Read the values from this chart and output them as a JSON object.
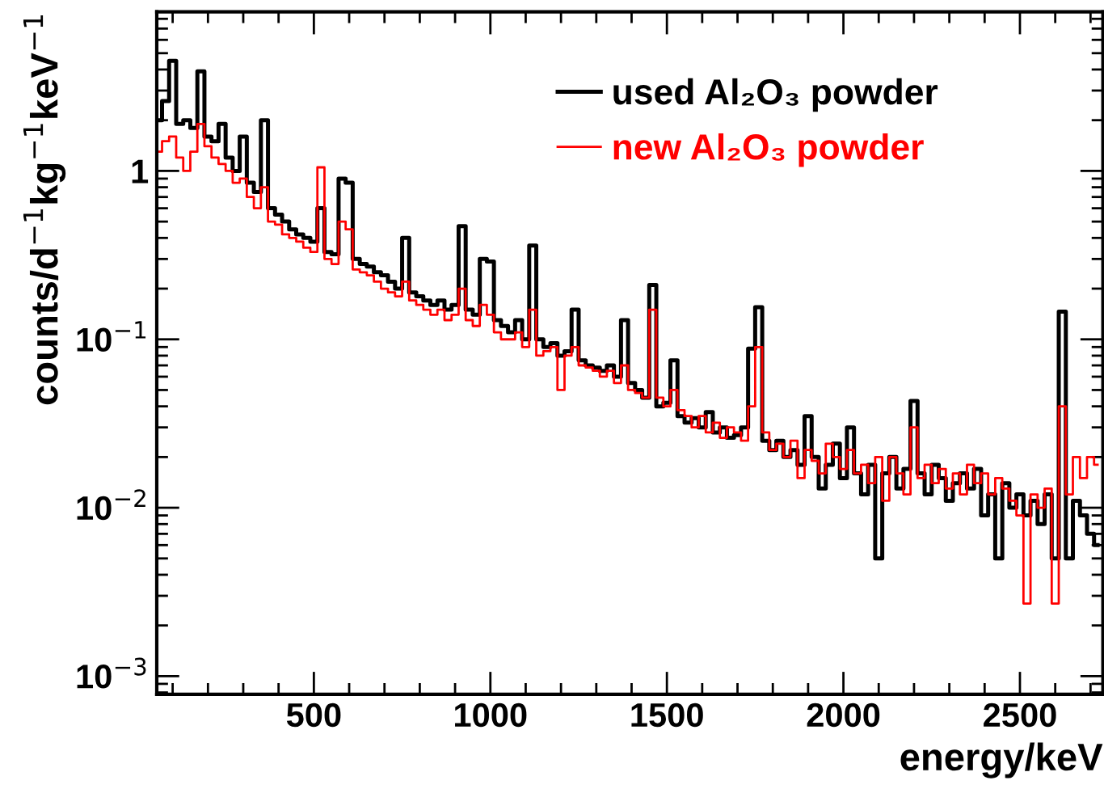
{
  "chart_data": {
    "type": "step",
    "xlabel": "energy/keV",
    "ylabel": "counts/d$^{−1}$kg$^{−1}$keV$^{−1}$",
    "x": [
      60,
      80,
      100,
      120,
      140,
      160,
      180,
      200,
      220,
      240,
      260,
      280,
      300,
      320,
      340,
      360,
      380,
      400,
      420,
      440,
      460,
      480,
      500,
      520,
      540,
      560,
      580,
      600,
      620,
      640,
      660,
      680,
      700,
      720,
      740,
      760,
      780,
      800,
      820,
      840,
      860,
      880,
      900,
      920,
      940,
      960,
      980,
      1000,
      1020,
      1040,
      1060,
      1080,
      1100,
      1120,
      1140,
      1160,
      1180,
      1200,
      1220,
      1240,
      1260,
      1280,
      1300,
      1320,
      1340,
      1360,
      1380,
      1400,
      1420,
      1440,
      1460,
      1480,
      1500,
      1520,
      1540,
      1560,
      1580,
      1600,
      1620,
      1640,
      1660,
      1680,
      1700,
      1720,
      1740,
      1760,
      1780,
      1800,
      1820,
      1840,
      1860,
      1880,
      1900,
      1920,
      1940,
      1960,
      1980,
      2000,
      2020,
      2040,
      2060,
      2080,
      2100,
      2120,
      2140,
      2160,
      2180,
      2200,
      2220,
      2240,
      2260,
      2280,
      2300,
      2320,
      2340,
      2360,
      2380,
      2400,
      2420,
      2440,
      2460,
      2480,
      2500,
      2520,
      2540,
      2560,
      2580,
      2600,
      2620,
      2640,
      2660,
      2680,
      2700,
      2720
    ],
    "series": [
      {
        "name": "used Al₂O₃ powder",
        "color": "#000000",
        "values": [
          2.0,
          2.6,
          4.5,
          1.9,
          2.0,
          1.8,
          3.9,
          1.6,
          1.5,
          1.9,
          1.2,
          1.0,
          1.6,
          0.85,
          0.75,
          2.0,
          0.6,
          0.55,
          0.5,
          0.45,
          0.42,
          0.4,
          0.38,
          0.6,
          0.33,
          0.32,
          0.9,
          0.85,
          0.3,
          0.28,
          0.27,
          0.25,
          0.24,
          0.22,
          0.2,
          0.4,
          0.19,
          0.18,
          0.17,
          0.16,
          0.17,
          0.15,
          0.16,
          0.47,
          0.15,
          0.14,
          0.3,
          0.29,
          0.13,
          0.12,
          0.11,
          0.13,
          0.1,
          0.36,
          0.1,
          0.09,
          0.095,
          0.08,
          0.085,
          0.15,
          0.075,
          0.07,
          0.068,
          0.065,
          0.07,
          0.06,
          0.13,
          0.055,
          0.05,
          0.045,
          0.21,
          0.04,
          0.042,
          0.075,
          0.035,
          0.032,
          0.034,
          0.03,
          0.037,
          0.028,
          0.03,
          0.026,
          0.027,
          0.03,
          0.088,
          0.155,
          0.025,
          0.022,
          0.025,
          0.02,
          0.022,
          0.018,
          0.035,
          0.02,
          0.013,
          0.018,
          0.024,
          0.015,
          0.03,
          0.016,
          0.012,
          0.018,
          0.005,
          0.016,
          0.02,
          0.013,
          0.017,
          0.043,
          0.016,
          0.012,
          0.018,
          0.015,
          0.011,
          0.014,
          0.016,
          0.013,
          0.017,
          0.009,
          0.012,
          0.005,
          0.014,
          0.01,
          0.012,
          0.009,
          0.011,
          0.008,
          0.012,
          0.005,
          0.146,
          0.005,
          0.011,
          0.009,
          0.007,
          0.006
        ]
      },
      {
        "name": "new Al₂O₃ powder",
        "color": "#ff0000",
        "values": [
          1.3,
          1.5,
          1.6,
          1.2,
          1.0,
          1.3,
          1.9,
          1.4,
          1.2,
          1.1,
          1.0,
          0.85,
          0.9,
          0.7,
          0.6,
          0.8,
          0.5,
          0.48,
          0.42,
          0.4,
          0.38,
          0.35,
          0.33,
          1.05,
          0.3,
          0.28,
          0.5,
          0.45,
          0.26,
          0.25,
          0.24,
          0.22,
          0.2,
          0.19,
          0.18,
          0.22,
          0.17,
          0.16,
          0.15,
          0.14,
          0.15,
          0.13,
          0.14,
          0.2,
          0.13,
          0.12,
          0.16,
          0.14,
          0.11,
          0.1,
          0.1,
          0.11,
          0.09,
          0.15,
          0.08,
          0.085,
          0.09,
          0.05,
          0.08,
          0.09,
          0.07,
          0.068,
          0.065,
          0.06,
          0.065,
          0.055,
          0.07,
          0.05,
          0.048,
          0.045,
          0.15,
          0.045,
          0.04,
          0.05,
          0.038,
          0.035,
          0.03,
          0.035,
          0.028,
          0.032,
          0.026,
          0.03,
          0.028,
          0.025,
          0.04,
          0.09,
          0.028,
          0.022,
          0.024,
          0.02,
          0.025,
          0.015,
          0.022,
          0.019,
          0.016,
          0.024,
          0.02,
          0.017,
          0.022,
          0.016,
          0.018,
          0.014,
          0.02,
          0.011,
          0.02,
          0.016,
          0.012,
          0.03,
          0.015,
          0.018,
          0.014,
          0.017,
          0.013,
          0.016,
          0.012,
          0.018,
          0.014,
          0.016,
          0.012,
          0.015,
          0.013,
          0.011,
          0.009,
          0.0027,
          0.012,
          0.01,
          0.013,
          0.0027,
          0.04,
          0.012,
          0.02,
          0.015,
          0.02,
          0.018
        ]
      }
    ],
    "log": "y",
    "xlim": [
      55,
      2735
    ],
    "xticks": [
      500,
      1000,
      1500,
      2000,
      2500
    ],
    "ylim": [
      0.00078,
      8.8
    ],
    "yticks": [
      {
        "value": 0.001,
        "label": "10$^{−3}$"
      },
      {
        "value": 0.01,
        "label": "10$^{−2}$"
      },
      {
        "value": 0.1,
        "label": "10$^{−1}$"
      },
      1
    ],
    "grid": false,
    "legend": "top right"
  }
}
